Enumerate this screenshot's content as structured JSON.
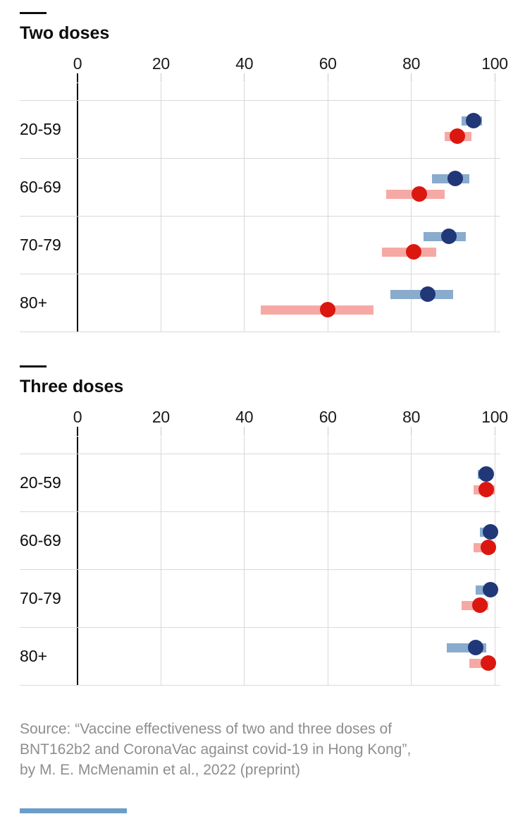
{
  "figure": {
    "source_lines": [
      "Source: “Vaccine effectiveness of two and three doses of",
      "BNT162b2 and CoronaVac against covid-19 in Hong Kong”,",
      "by M. E. McMenamin et al., 2022 (preprint)"
    ]
  },
  "colors": {
    "bnt_dot": "#203778",
    "bnt_ci": "#89abce",
    "coronavac_dot": "#db1710",
    "coronavac_ci": "#f6a9a4",
    "gridline": "#d9d9d9",
    "zero_axis": "#000000",
    "tick_mark": "#c9c9c9",
    "zero_tick_mark": "#000000",
    "title_text": "#0d0d0d",
    "tick_text": "#1a1a1a",
    "source_text": "#8e8e8e",
    "bottom_bar": "#6b9dc9"
  },
  "chart_data": [
    {
      "type": "scatter",
      "subtype": "dot-with-confidence-interval",
      "title": "Two doses",
      "categories": [
        "20-59",
        "60-69",
        "70-79",
        "80+"
      ],
      "x_tick_labels": [
        "0",
        "20",
        "40",
        "60",
        "80",
        "100"
      ],
      "x_ticks": [
        0,
        20,
        40,
        60,
        80,
        100
      ],
      "xlim": [
        0,
        100
      ],
      "grid": true,
      "legend": "none",
      "series": [
        {
          "name": "BNT162b2",
          "values": [
            95,
            90.5,
            89,
            84
          ],
          "ci": [
            [
              92,
              97
            ],
            [
              85,
              94
            ],
            [
              83,
              93
            ],
            [
              75,
              90
            ]
          ]
        },
        {
          "name": "CoronaVac",
          "values": [
            91,
            82,
            80.5,
            60
          ],
          "ci": [
            [
              88,
              94.5
            ],
            [
              74,
              88
            ],
            [
              73,
              86
            ],
            [
              44,
              71
            ]
          ]
        }
      ]
    },
    {
      "type": "scatter",
      "subtype": "dot-with-confidence-interval",
      "title": "Three doses",
      "categories": [
        "20-59",
        "60-69",
        "70-79",
        "80+"
      ],
      "x_tick_labels": [
        "0",
        "20",
        "40",
        "60",
        "80",
        "100"
      ],
      "x_ticks": [
        0,
        20,
        40,
        60,
        80,
        100
      ],
      "xlim": [
        0,
        100
      ],
      "grid": true,
      "legend": "none",
      "series": [
        {
          "name": "BNT162b2",
          "values": [
            98,
            99,
            99,
            95.5
          ],
          "ci": [
            [
              96,
              99.5
            ],
            [
              96.5,
              100
            ],
            [
              95.5,
              100
            ],
            [
              88.5,
              98
            ]
          ]
        },
        {
          "name": "CoronaVac",
          "values": [
            98,
            98.5,
            96.5,
            98.5
          ],
          "ci": [
            [
              95,
              100
            ],
            [
              95,
              100
            ],
            [
              92,
              98.5
            ],
            [
              94,
              100
            ]
          ]
        }
      ]
    }
  ]
}
